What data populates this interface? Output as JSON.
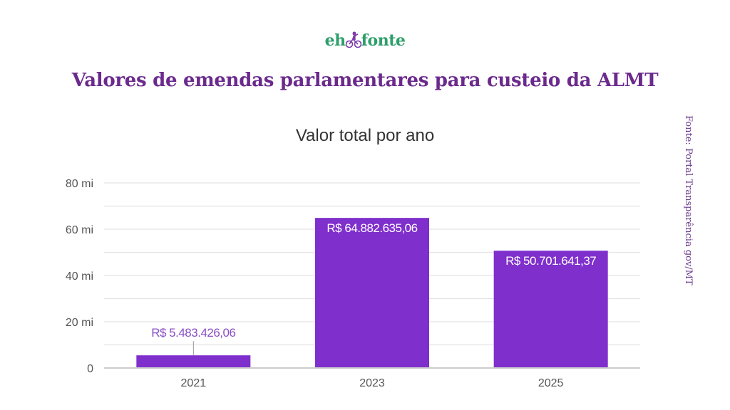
{
  "brand": {
    "logo_left": "eh",
    "logo_right": "fonte",
    "logo_icon": "cyclist-icon",
    "logo_color": "#2e9e6b",
    "icon_color": "#7b3aa8"
  },
  "headline": "Valores de emendas parlamentares para custeio da ALMT",
  "source": "Fonte: Portal Transparência gov/MT",
  "colors": {
    "bar": "#7f2fcc",
    "headline": "#6b2a8c",
    "grid": "#e3e3e3",
    "axis": "#cccccc",
    "label_outside": "#8a4fc4",
    "label_inside": "#ffffff"
  },
  "chart_data": {
    "type": "bar",
    "title": "Valor total por ano",
    "xlabel": "",
    "ylabel": "",
    "categories": [
      "2021",
      "2023",
      "2025"
    ],
    "values": [
      5483426.06,
      64882635.06,
      50701641.37
    ],
    "data_labels": [
      "R$ 5.483.426,06",
      "R$ 64.882.635,06",
      "R$ 50.701.641,37"
    ],
    "ylim": [
      0,
      80000000
    ],
    "y_ticks": [
      0,
      20000000,
      40000000,
      60000000,
      80000000
    ],
    "y_tick_labels": [
      "0",
      "20 mi",
      "40 mi",
      "60 mi",
      "80 mi"
    ],
    "minor_grid_step": 10000000,
    "grid": true,
    "legend": "none"
  }
}
